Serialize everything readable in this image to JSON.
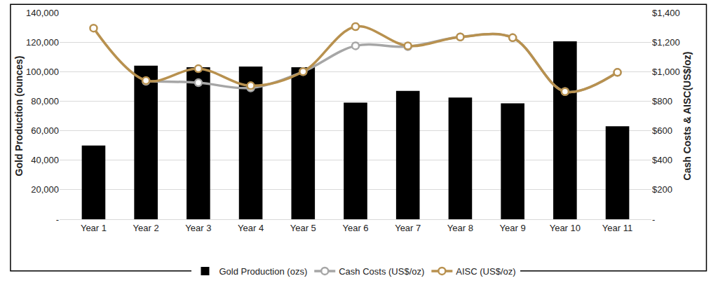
{
  "chart_data": {
    "type": "bar",
    "categories": [
      "Year 1",
      "Year 2",
      "Year 3",
      "Year 4",
      "Year 5",
      "Year 6",
      "Year 7",
      "Year 8",
      "Year 9",
      "Year 10",
      "Year 11"
    ],
    "series": [
      {
        "name": "Gold Production (ozs)",
        "type": "bar",
        "color": "#000000",
        "values": [
          50000,
          104000,
          103000,
          103500,
          103000,
          79000,
          87000,
          82500,
          78500,
          120500,
          63000
        ]
      },
      {
        "name": "Cash Costs (US$/oz)",
        "type": "line",
        "axis": "y2",
        "color": "#a6a6a6",
        "marker": "circle",
        "line_style": "smooth",
        "values": [
          null,
          935,
          925,
          890,
          1000,
          1175,
          1170,
          1235,
          1230,
          865,
          995
        ]
      },
      {
        "name": "AISC (US$/oz)",
        "type": "line",
        "axis": "y2",
        "color": "#b8914f",
        "marker": "circle",
        "line_style": "smooth",
        "values": [
          1295,
          940,
          1020,
          905,
          1000,
          1305,
          1175,
          1235,
          1230,
          865,
          995
        ]
      }
    ],
    "y_label": "Gold Production (ounces)",
    "y2_label": "Cash Costs & AISC(US$/oz)",
    "ylim": [
      0,
      140000
    ],
    "yticks": [
      {
        "value": 0,
        "label": "-"
      },
      {
        "value": 20000,
        "label": "20,000"
      },
      {
        "value": 40000,
        "label": "40,000"
      },
      {
        "value": 60000,
        "label": "60,000"
      },
      {
        "value": 80000,
        "label": "80,000"
      },
      {
        "value": 100000,
        "label": "100,000"
      },
      {
        "value": 120000,
        "label": "120,000"
      },
      {
        "value": 140000,
        "label": "140,000"
      }
    ],
    "y2lim": [
      0,
      1400
    ],
    "y2ticks": [
      {
        "value": 0,
        "label": "-"
      },
      {
        "value": 200,
        "label": "$200"
      },
      {
        "value": 400,
        "label": "$400"
      },
      {
        "value": 600,
        "label": "$600"
      },
      {
        "value": 800,
        "label": "$800"
      },
      {
        "value": 1000,
        "label": "$1,000"
      },
      {
        "value": 1200,
        "label": "$1,200"
      },
      {
        "value": 1400,
        "label": "$1,400"
      }
    ],
    "grid": true,
    "legend": "bottom"
  }
}
